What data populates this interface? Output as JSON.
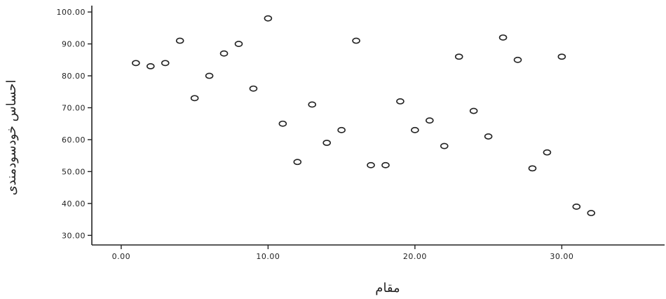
{
  "chart_data": {
    "type": "scatter",
    "xlabel": "مقام",
    "ylabel": "احساس خودسودمندی",
    "xlim": [
      -2,
      37
    ],
    "ylim": [
      27,
      102
    ],
    "x_ticks": [
      "0.00",
      "10.00",
      "20.00",
      "30.00"
    ],
    "y_ticks": [
      "30.00",
      "40.00",
      "50.00",
      "60.00",
      "70.00",
      "80.00",
      "90.00",
      "100.00"
    ],
    "grid": false,
    "marker": "open-circle",
    "marker_color": "#222222",
    "points": [
      {
        "x": 1,
        "y": 84
      },
      {
        "x": 2,
        "y": 83
      },
      {
        "x": 3,
        "y": 84
      },
      {
        "x": 4,
        "y": 91
      },
      {
        "x": 5,
        "y": 73
      },
      {
        "x": 6,
        "y": 80
      },
      {
        "x": 7,
        "y": 87
      },
      {
        "x": 8,
        "y": 90
      },
      {
        "x": 9,
        "y": 76
      },
      {
        "x": 10,
        "y": 98
      },
      {
        "x": 11,
        "y": 65
      },
      {
        "x": 12,
        "y": 53
      },
      {
        "x": 13,
        "y": 71
      },
      {
        "x": 14,
        "y": 59
      },
      {
        "x": 15,
        "y": 63
      },
      {
        "x": 16,
        "y": 91
      },
      {
        "x": 17,
        "y": 52
      },
      {
        "x": 18,
        "y": 52
      },
      {
        "x": 19,
        "y": 72
      },
      {
        "x": 20,
        "y": 63
      },
      {
        "x": 21,
        "y": 66
      },
      {
        "x": 22,
        "y": 58
      },
      {
        "x": 23,
        "y": 86
      },
      {
        "x": 24,
        "y": 69
      },
      {
        "x": 25,
        "y": 61
      },
      {
        "x": 26,
        "y": 92
      },
      {
        "x": 27,
        "y": 85
      },
      {
        "x": 28,
        "y": 51
      },
      {
        "x": 29,
        "y": 56
      },
      {
        "x": 30,
        "y": 86
      },
      {
        "x": 31,
        "y": 39
      },
      {
        "x": 32,
        "y": 37
      }
    ]
  }
}
